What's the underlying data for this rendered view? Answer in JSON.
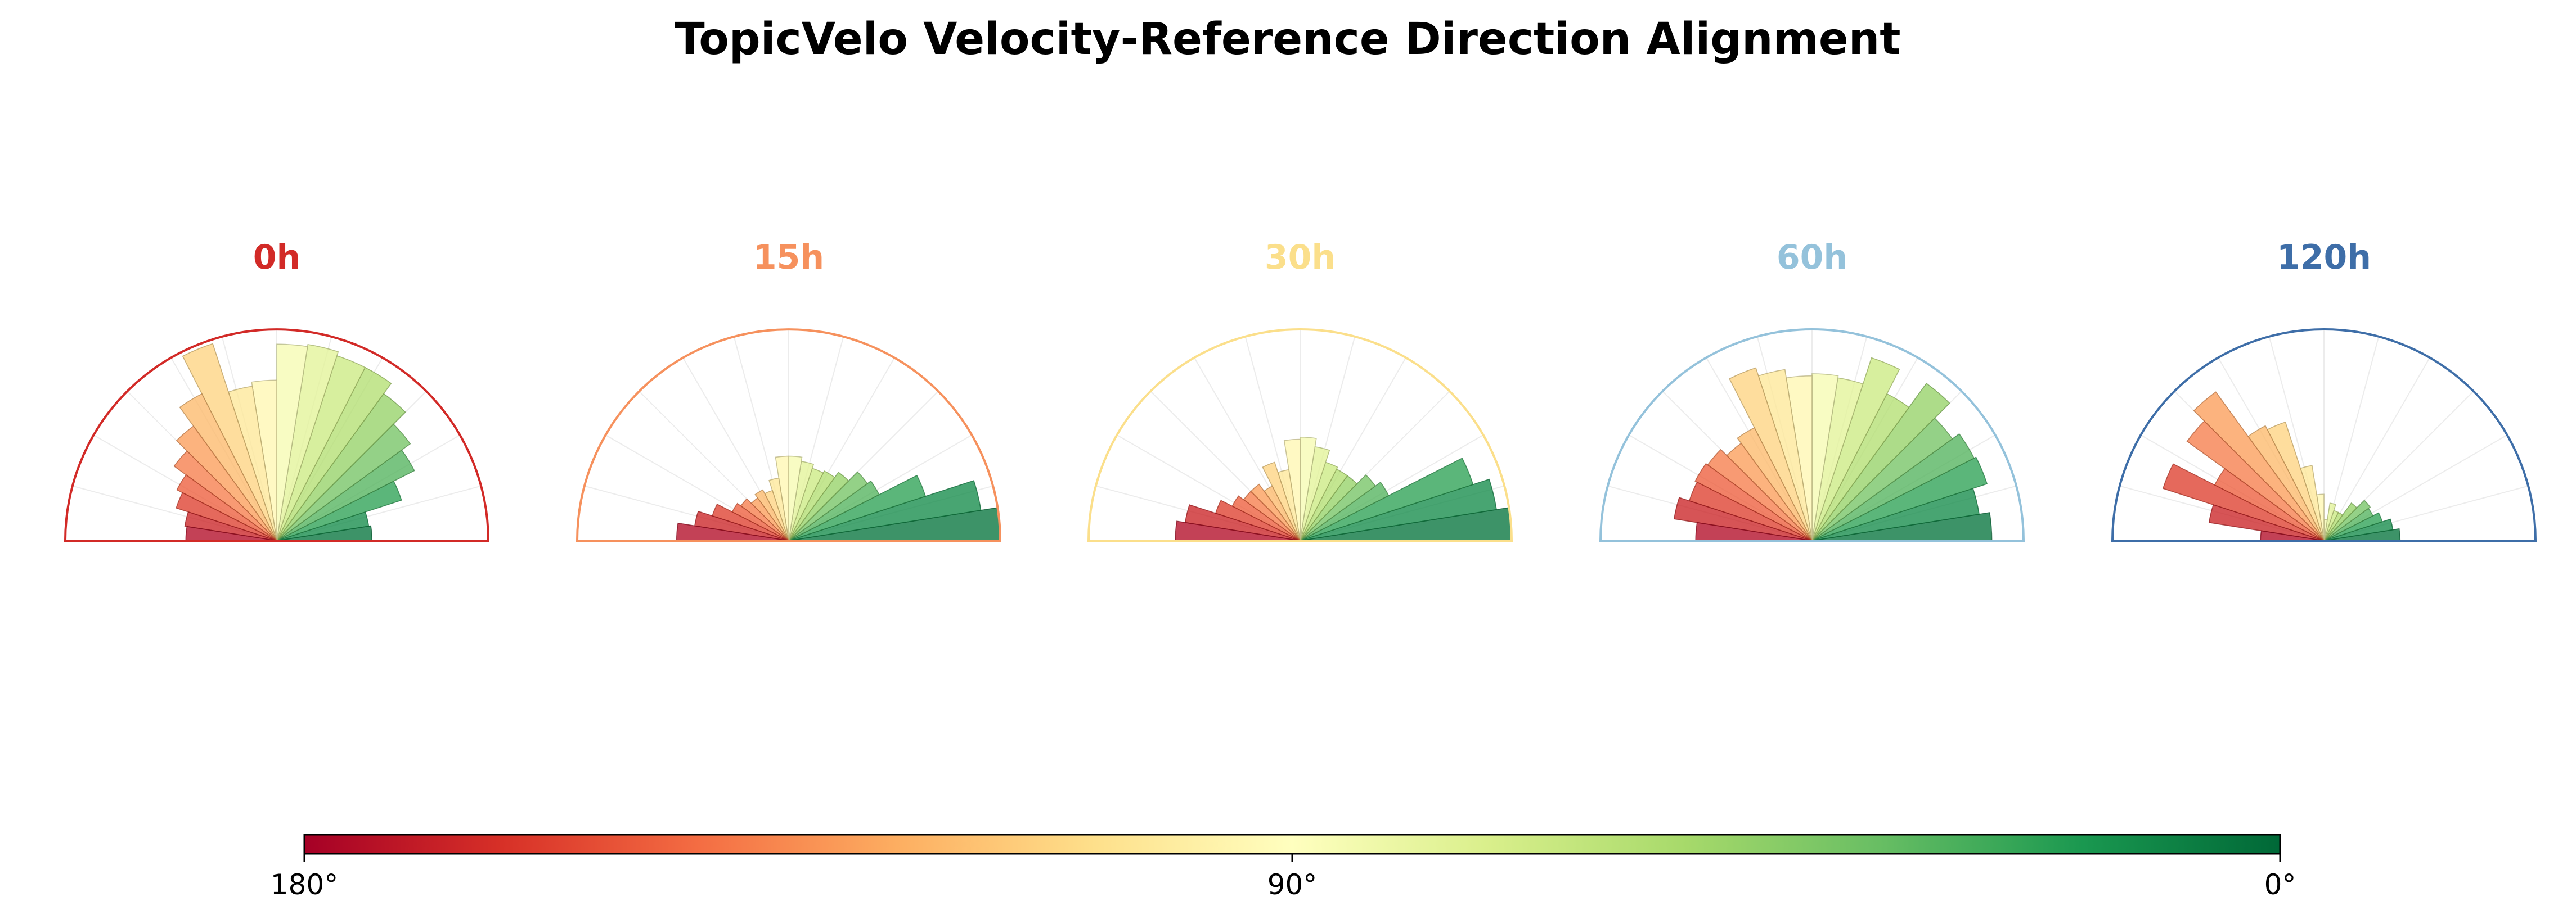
{
  "chart_data": {
    "type": "polar-bar",
    "title": "TopicVelo Velocity-Reference Direction Alignment",
    "angle_unit": "degrees",
    "bin_width_deg": 9,
    "bin_centers_deg": [
      4.5,
      13.5,
      22.5,
      31.5,
      40.5,
      49.5,
      58.5,
      67.5,
      76.5,
      85.5,
      94.5,
      103.5,
      112.5,
      121.5,
      130.5,
      139.5,
      148.5,
      157.5,
      166.5,
      175.5
    ],
    "panels": [
      {
        "label": "0h",
        "color": "#d22a27",
        "values": [
          0.45,
          0.44,
          0.62,
          0.73,
          0.78,
          0.86,
          0.92,
          0.92,
          0.94,
          0.93,
          0.76,
          0.74,
          0.98,
          0.78,
          0.67,
          0.6,
          0.53,
          0.5,
          0.44,
          0.43
        ]
      },
      {
        "label": "15h",
        "color": "#f6915d",
        "values": [
          1.0,
          0.92,
          0.68,
          0.48,
          0.46,
          0.4,
          0.37,
          0.36,
          0.38,
          0.4,
          0.4,
          0.3,
          0.25,
          0.27,
          0.25,
          0.28,
          0.3,
          0.38,
          0.45,
          0.53
        ]
      },
      {
        "label": "30h",
        "color": "#fbdf8b",
        "values": [
          1.0,
          0.94,
          0.86,
          0.47,
          0.44,
          0.38,
          0.38,
          0.39,
          0.45,
          0.49,
          0.48,
          0.34,
          0.39,
          0.29,
          0.33,
          0.33,
          0.36,
          0.42,
          0.55,
          0.59
        ]
      },
      {
        "label": "60h",
        "color": "#94c2db",
        "values": [
          0.85,
          0.8,
          0.87,
          0.86,
          0.82,
          0.92,
          0.78,
          0.91,
          0.78,
          0.79,
          0.78,
          0.82,
          0.86,
          0.6,
          0.57,
          0.61,
          0.62,
          0.61,
          0.66,
          0.55
        ]
      },
      {
        "label": "120h",
        "color": "#3e6ea8",
        "values": [
          0.36,
          0.33,
          0.29,
          0.26,
          0.27,
          0.22,
          0.15,
          0.15,
          0.18,
          0.1,
          0.22,
          0.36,
          0.59,
          0.61,
          0.87,
          0.8,
          0.58,
          0.8,
          0.55,
          0.3
        ]
      }
    ],
    "colorbar": {
      "colormap": [
        "#a50026",
        "#d73027",
        "#f46d43",
        "#fdae61",
        "#fee08b",
        "#ffffbf",
        "#d9ef8b",
        "#a6d96a",
        "#66bd63",
        "#1a9850",
        "#006837"
      ],
      "ticks": [
        "180°",
        "90°",
        "0°"
      ]
    }
  }
}
